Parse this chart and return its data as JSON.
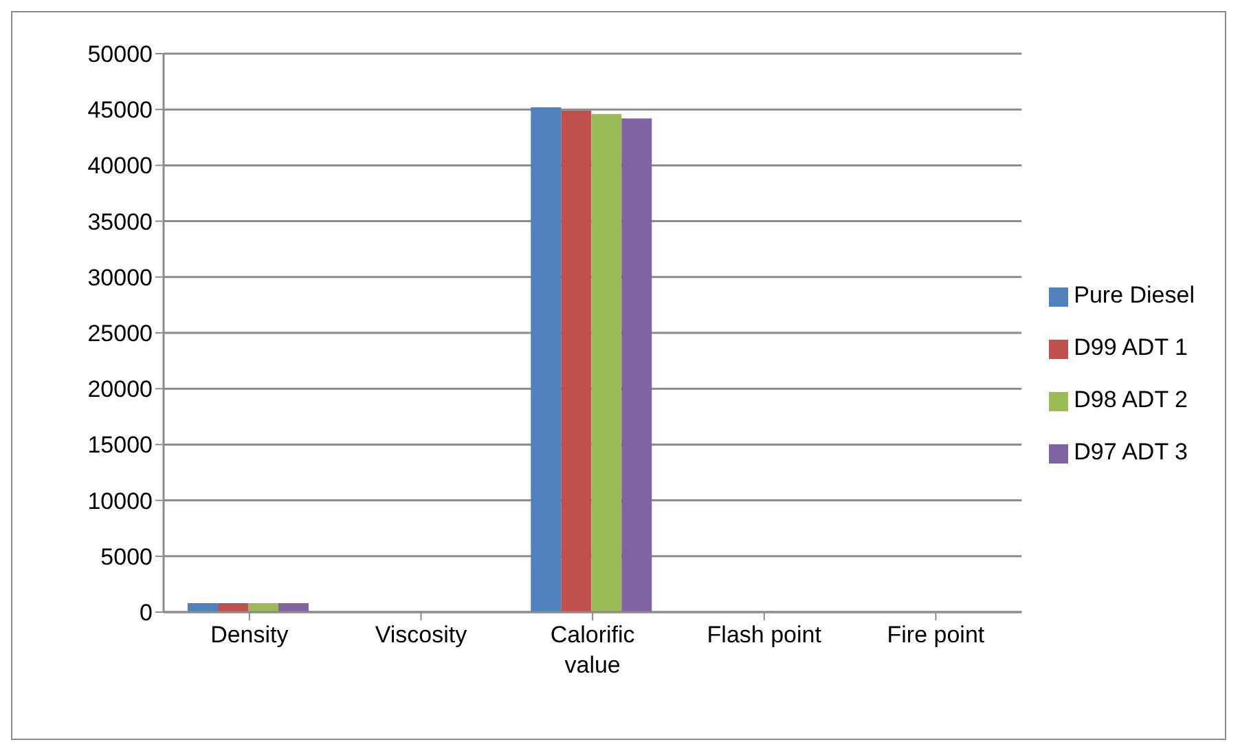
{
  "chart_data": {
    "type": "bar",
    "categories": [
      "Density",
      "Viscosity",
      "Calorific value",
      "Flash point",
      "Fire point"
    ],
    "series": [
      {
        "name": "Pure Diesel",
        "color": "#4f81bd",
        "values": [
          800,
          0,
          45200,
          0,
          0
        ]
      },
      {
        "name": "D99 ADT 1",
        "color": "#c0504d",
        "values": [
          800,
          0,
          44900,
          0,
          0
        ]
      },
      {
        "name": "D98 ADT 2",
        "color": "#9bbb59",
        "values": [
          800,
          0,
          44600,
          0,
          0
        ]
      },
      {
        "name": "D97 ADT 3",
        "color": "#8064a2",
        "values": [
          800,
          0,
          44200,
          0,
          0
        ]
      }
    ],
    "ylim": [
      0,
      50000
    ],
    "yticks": [
      0,
      5000,
      10000,
      15000,
      20000,
      25000,
      30000,
      35000,
      40000,
      45000,
      50000
    ],
    "grid": "y",
    "legend": "right"
  }
}
